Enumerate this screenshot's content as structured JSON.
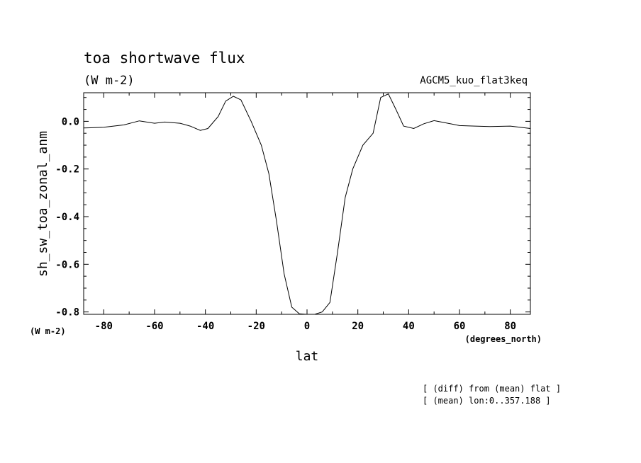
{
  "chart_data": {
    "type": "line",
    "title": "toa shortwave flux",
    "units": "(W m-2)",
    "experiment": "AGCM5_kuo_flat3keq",
    "xlabel": "lat",
    "xunits": "(degrees_north)",
    "ylabel": "sh_sw_toa_zonal_anm",
    "yunits": "(W m-2)",
    "xlim": [
      -87.9,
      87.9
    ],
    "ylim": [
      -0.81,
      0.12
    ],
    "xticks": [
      -80,
      -60,
      -40,
      -20,
      0,
      20,
      40,
      60,
      80
    ],
    "xtick_labels": [
      "-80",
      "-60",
      "-40",
      "-20",
      "0",
      "20",
      "40",
      "60",
      "80"
    ],
    "yticks": [
      0.0,
      -0.2,
      -0.4,
      -0.6,
      -0.8
    ],
    "ytick_labels": [
      "0.0",
      "-0.2",
      "-0.4",
      "-0.6",
      "-0.8"
    ],
    "notes": [
      "[ (diff) from (mean) flat ]",
      "[ (mean) lon:0..357.188 ]"
    ],
    "grid": false,
    "series": [
      {
        "x": [
          -87.9,
          -80,
          -72,
          -66,
          -60,
          -56,
          -50,
          -46,
          -42,
          -39,
          -35,
          -32,
          -29,
          -26,
          -22,
          -18,
          -15,
          -12,
          -9,
          -6,
          -3,
          0,
          3,
          6,
          9,
          12,
          15,
          18,
          22,
          26,
          29,
          32,
          35,
          38,
          42,
          46,
          50,
          54,
          60,
          66,
          72,
          80,
          87.9
        ],
        "y": [
          -0.028,
          -0.025,
          -0.015,
          0.002,
          -0.008,
          -0.003,
          -0.008,
          -0.02,
          -0.038,
          -0.03,
          0.02,
          0.085,
          0.105,
          0.09,
          0.0,
          -0.1,
          -0.22,
          -0.42,
          -0.64,
          -0.78,
          -0.808,
          -0.81,
          -0.81,
          -0.8,
          -0.76,
          -0.55,
          -0.32,
          -0.2,
          -0.1,
          -0.05,
          0.1,
          0.115,
          0.05,
          -0.02,
          -0.03,
          -0.01,
          0.003,
          -0.005,
          -0.018,
          -0.02,
          -0.022,
          -0.02,
          -0.03
        ]
      }
    ]
  }
}
